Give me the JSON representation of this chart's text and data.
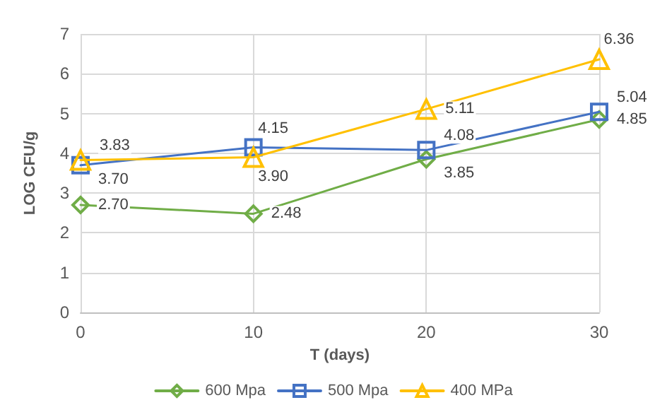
{
  "chart_data": {
    "type": "line",
    "xlabel": "T (days)",
    "ylabel": "LOG CFU/g",
    "x": [
      0,
      10,
      20,
      30
    ],
    "series": [
      {
        "name": "600 Mpa",
        "color": "#70ad47",
        "marker": "diamond",
        "values": [
          2.7,
          2.48,
          3.85,
          4.85
        ],
        "value_labels": [
          "2.70",
          "2.48",
          "3.85",
          "4.85"
        ]
      },
      {
        "name": "500 Mpa",
        "color": "#4472c4",
        "marker": "square",
        "values": [
          3.7,
          4.15,
          4.08,
          5.04
        ],
        "value_labels": [
          "3.70",
          "4.15",
          "4.08",
          "5.04"
        ]
      },
      {
        "name": "400 MPa",
        "color": "#ffc000",
        "marker": "triangle",
        "values": [
          3.83,
          3.9,
          5.11,
          6.36
        ],
        "value_labels": [
          "3.83",
          "3.90",
          "5.11",
          "6.36"
        ]
      }
    ],
    "xlim": [
      0,
      30
    ],
    "xticks": [
      0,
      10,
      20,
      30
    ],
    "ylim": [
      0,
      7
    ],
    "yticks": [
      0,
      1,
      2,
      3,
      4,
      5,
      6,
      7
    ],
    "grid": true,
    "legend": "bottom",
    "line_style": "solid"
  }
}
